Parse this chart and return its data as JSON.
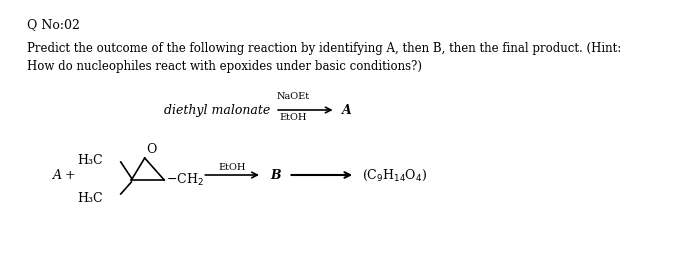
{
  "title": "Q No:02",
  "line1": "Predict the outcome of the following reaction by identifying A, then B, then the final product. (Hint:",
  "line2": "How do nucleophiles react with epoxides under basic conditions?)",
  "reaction1_reactant": "diethyl malonate",
  "reaction1_reagent_top": "NaOEt",
  "reaction1_reagent_bottom": "EtOH",
  "reaction1_product": "A",
  "reaction2_left": "A +",
  "reaction2_reagent": "EtOH",
  "reaction2_mid": "B",
  "reaction2_product": "(C₉H₁₄O₄)",
  "bg_color": "#ffffff",
  "text_color": "#000000",
  "font_size_title": 9,
  "font_size_body": 8.5,
  "font_size_chem": 9
}
